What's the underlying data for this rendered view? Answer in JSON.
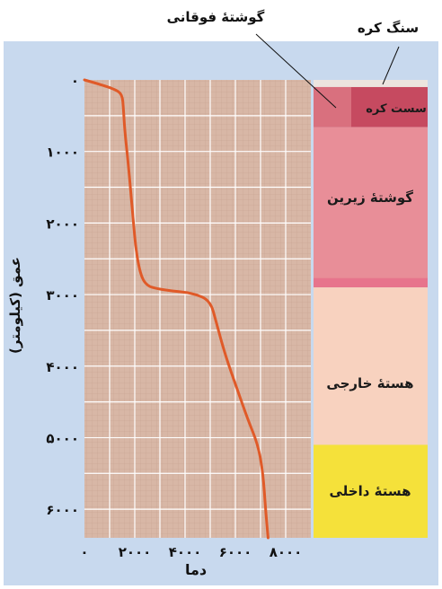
{
  "chart_data": {
    "type": "line",
    "title": "",
    "xlabel": "دما",
    "ylabel": "عمق (کیلومتر)",
    "xlim": [
      0,
      9000
    ],
    "ylim": [
      6400,
      0
    ],
    "x_ticks": [
      {
        "value": 0,
        "label": "۰"
      },
      {
        "value": 2000,
        "label": "۲۰۰۰"
      },
      {
        "value": 4000,
        "label": "۴۰۰۰"
      },
      {
        "value": 6000,
        "label": "۶۰۰۰"
      },
      {
        "value": 8000,
        "label": "۸۰۰۰"
      }
    ],
    "y_ticks": [
      {
        "value": 0,
        "label": "۰"
      },
      {
        "value": 1000,
        "label": "۱۰۰۰"
      },
      {
        "value": 2000,
        "label": "۲۰۰۰"
      },
      {
        "value": 3000,
        "label": "۳۰۰۰"
      },
      {
        "value": 4000,
        "label": "۴۰۰۰"
      },
      {
        "value": 5000,
        "label": "۵۰۰۰"
      },
      {
        "value": 6000,
        "label": "۶۰۰۰"
      }
    ],
    "grid": true,
    "series": [
      {
        "color": "#e05a28",
        "points": [
          [
            0,
            0
          ],
          [
            600,
            60
          ],
          [
            1200,
            130
          ],
          [
            1500,
            200
          ],
          [
            1550,
            400
          ],
          [
            1600,
            700
          ],
          [
            1750,
            1200
          ],
          [
            1900,
            1800
          ],
          [
            2050,
            2400
          ],
          [
            2250,
            2750
          ],
          [
            2500,
            2880
          ],
          [
            2900,
            2920
          ],
          [
            3500,
            2950
          ],
          [
            4300,
            2980
          ],
          [
            5000,
            3080
          ],
          [
            5250,
            3400
          ],
          [
            5600,
            3850
          ],
          [
            6100,
            4350
          ],
          [
            6500,
            4750
          ],
          [
            6900,
            5100
          ],
          [
            7100,
            5500
          ],
          [
            7200,
            6000
          ],
          [
            7300,
            6400
          ]
        ]
      }
    ],
    "layers": [
      {
        "name": "سنگ کره",
        "top": 0,
        "bottom": 100,
        "color": "#ece4de"
      },
      {
        "name": "سست کره",
        "top": 100,
        "bottom": 660,
        "color": "#c64a60"
      },
      {
        "name": "گوشتهٔ زیرین",
        "top": 660,
        "bottom": 2900,
        "color": "#e88e98"
      },
      {
        "name": "",
        "top": 2770,
        "bottom": 2900,
        "color": "#e7748c"
      },
      {
        "name": "هستهٔ خارجی",
        "top": 2900,
        "bottom": 5100,
        "color": "#f8d2bf"
      },
      {
        "name": "هستهٔ داخلی",
        "top": 5100,
        "bottom": 6400,
        "color": "#f5e13a"
      }
    ],
    "upper_mantle": {
      "name": "گوشتهٔ فوقانی",
      "top": 100,
      "bottom": 660,
      "color": "#d9707e"
    },
    "annotations": [
      {
        "text": "سنگ کره",
        "target": "layer-lithosphere"
      },
      {
        "text": "گوشتهٔ فوقانی",
        "target": "upper-mantle"
      }
    ]
  }
}
